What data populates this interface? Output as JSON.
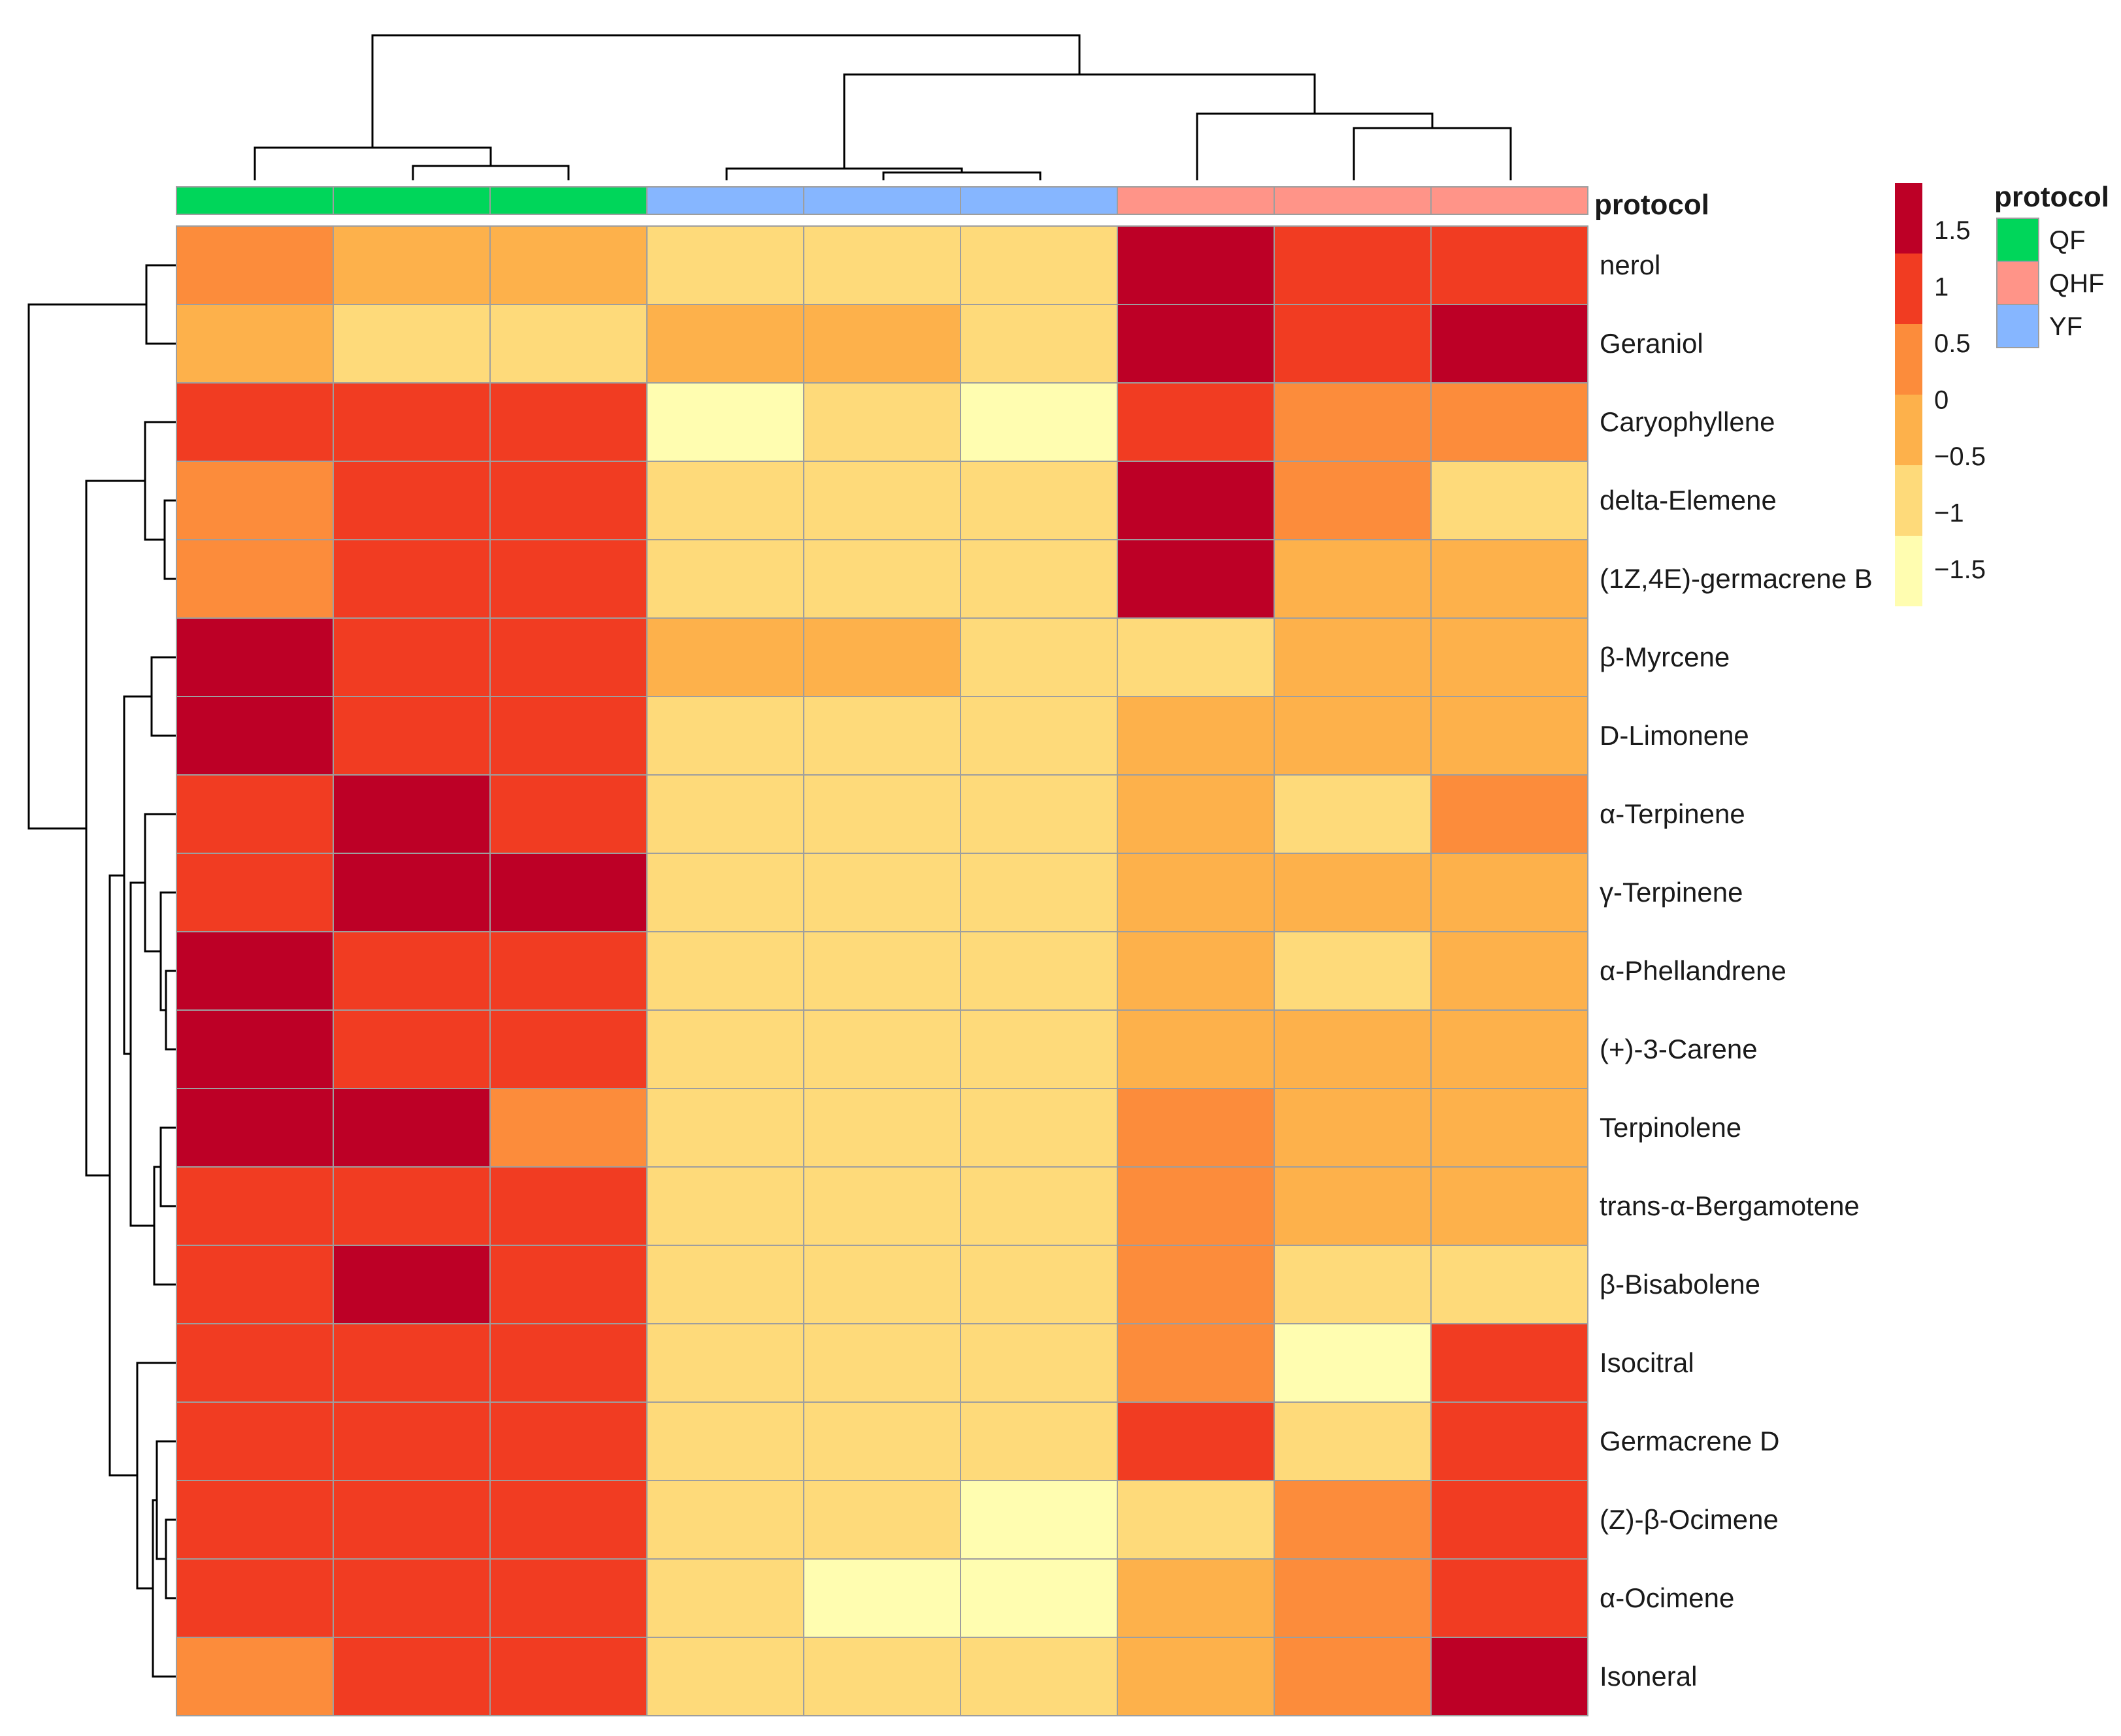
{
  "chart_data": {
    "type": "heatmap",
    "title": "",
    "annotation_title": "protocol",
    "columns": [
      {
        "group": "QF"
      },
      {
        "group": "QF"
      },
      {
        "group": "QF"
      },
      {
        "group": "YF"
      },
      {
        "group": "YF"
      },
      {
        "group": "YF"
      },
      {
        "group": "QHF"
      },
      {
        "group": "QHF"
      },
      {
        "group": "QHF"
      }
    ],
    "rows": [
      "nerol",
      "Geraniol",
      "Caryophyllene",
      "delta-Elemene",
      "(1Z,4E)-germacrene B",
      "β-Myrcene",
      "D-Limonene",
      "α-Terpinene",
      "γ-Terpinene",
      "α-Phellandrene",
      "(+)-3-Carene",
      "Terpinolene",
      "trans-α-Bergamotene",
      "β-Bisabolene",
      "Isocitral",
      "Germacrene D",
      "(Z)-β-Ocimene",
      "α-Ocimene",
      "Isoneral"
    ],
    "values": [
      [
        0.5,
        -0.5,
        -0.5,
        -1,
        -1,
        -1,
        1.7,
        1,
        1
      ],
      [
        -0.5,
        -1,
        -1,
        -0.5,
        -0.5,
        -1,
        1.7,
        1,
        1.7
      ],
      [
        1,
        1,
        1,
        -1.5,
        -1,
        -1.5,
        1,
        0.5,
        0.5
      ],
      [
        0.5,
        1,
        1,
        -1,
        -1,
        -1,
        1.7,
        0.5,
        -1
      ],
      [
        0.5,
        1,
        1,
        -1,
        -1,
        -1,
        1.7,
        -0.5,
        -0.5
      ],
      [
        1.7,
        1,
        1,
        -0.5,
        -0.5,
        -1,
        -1,
        -0.5,
        -0.5
      ],
      [
        1.7,
        1,
        1,
        -1,
        -1,
        -1,
        -0.5,
        -0.5,
        -0.5
      ],
      [
        1,
        1.7,
        1,
        -1,
        -1,
        -1,
        -0.5,
        -1,
        0.5
      ],
      [
        1,
        1.7,
        1.7,
        -1,
        -1,
        -1,
        -0.5,
        -0.5,
        -0.5
      ],
      [
        1.7,
        1,
        1,
        -1,
        -1,
        -1,
        -0.5,
        -1,
        -0.5
      ],
      [
        1.7,
        1,
        1,
        -1,
        -1,
        -1,
        -0.5,
        -0.5,
        -0.5
      ],
      [
        1.7,
        1.7,
        0.5,
        -1,
        -1,
        -1,
        0.5,
        -0.5,
        -0.5
      ],
      [
        1,
        1,
        1,
        -1,
        -1,
        -1,
        0.5,
        -0.5,
        -0.5
      ],
      [
        1,
        1.7,
        1,
        -1,
        -1,
        -1,
        0.5,
        -1,
        -1
      ],
      [
        1,
        1,
        1,
        -1,
        -1,
        -1,
        0.5,
        -1.5,
        1
      ],
      [
        1,
        1,
        1,
        -1,
        -1,
        -1,
        1,
        -1,
        1
      ],
      [
        1,
        1,
        1,
        -1,
        -1,
        -1.5,
        -1,
        0.5,
        1
      ],
      [
        1,
        1,
        1,
        -1,
        -1.5,
        -1.5,
        -0.5,
        0.5,
        1
      ],
      [
        0.5,
        1,
        1,
        -1,
        -1,
        -1,
        -0.5,
        0.5,
        1.7
      ]
    ],
    "color_scale": {
      "ticks": [
        "1.5",
        "1",
        "0.5",
        "0",
        "−0.5",
        "−1",
        "−1.5"
      ],
      "bins": [
        {
          "max": -1.25,
          "color": "#FFFDB0"
        },
        {
          "max": -0.75,
          "color": "#FEDA7A"
        },
        {
          "max": -0.25,
          "color": "#FDB14B"
        },
        {
          "max": 0.75,
          "color": "#FC8C3B"
        },
        {
          "max": 1.35,
          "color": "#F13C22"
        },
        {
          "max": 99,
          "color": "#BD0026"
        }
      ],
      "legend_colors": [
        "#BD0026",
        "#F13C22",
        "#FC8C3B",
        "#FDB14B",
        "#FEDA7A",
        "#FFFDB0"
      ]
    },
    "legend": {
      "title": "protocol",
      "items": [
        {
          "label": "QF",
          "color": "#00D65A"
        },
        {
          "label": "QHF",
          "color": "#FF9488"
        },
        {
          "label": "YF",
          "color": "#86B6FF"
        }
      ]
    }
  }
}
